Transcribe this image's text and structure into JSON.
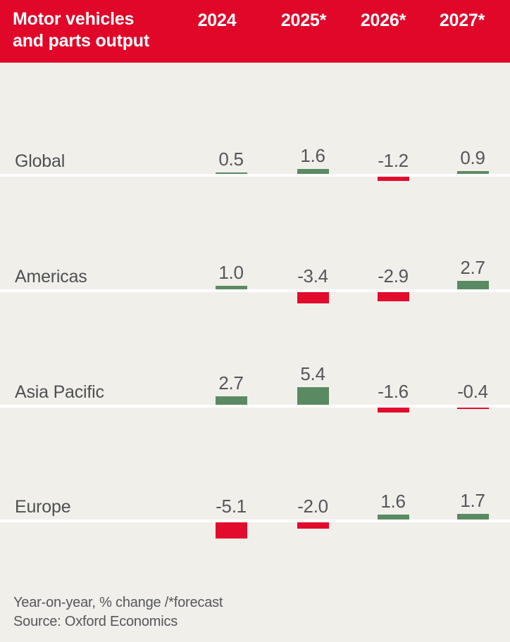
{
  "header": {
    "title_line1": "Motor vehicles",
    "title_line2": "and parts output",
    "background_color": "#e00729",
    "text_color": "#ffffff"
  },
  "chart_data": {
    "type": "bar",
    "title": "Motor vehicles and parts output",
    "subtitle": "Year-on-year, % change /*forecast",
    "categories": [
      "2024",
      "2025*",
      "2026*",
      "2027*"
    ],
    "series": [
      {
        "name": "Global",
        "values": [
          0.5,
          1.6,
          -1.2,
          0.9
        ]
      },
      {
        "name": "Americas",
        "values": [
          1.0,
          -3.4,
          -2.9,
          2.7
        ]
      },
      {
        "name": "Asia Pacific",
        "values": [
          2.7,
          5.4,
          -1.6,
          -0.4
        ]
      },
      {
        "name": "Europe",
        "values": [
          -5.1,
          -2.0,
          1.6,
          1.7
        ]
      }
    ],
    "value_format": "one_decimal",
    "positive_color": "#598a62",
    "negative_color": "#e20b2e",
    "zero_line_color": "#ffffff",
    "background_color": "#f1efea",
    "layout_hint": "four stacked mini bar rows, shared columns, zero baseline per row, value labels above bars"
  },
  "footer": {
    "note": "Year-on-year, % change /*forecast",
    "source": "Source: Oxford Economics"
  }
}
